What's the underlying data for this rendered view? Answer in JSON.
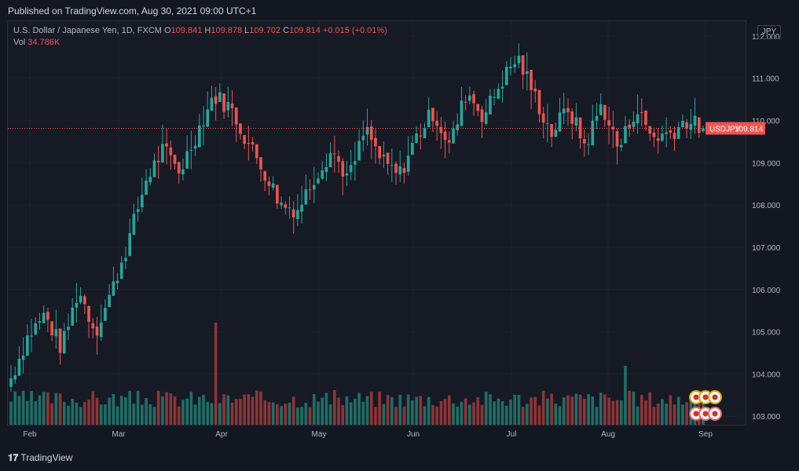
{
  "header": {
    "published": "Published on TradingView.com, Aug 30, 2021 09:00 UTC+1"
  },
  "legend": {
    "symbol_desc": "U.S. Dollar / Japanese Yen, 1D, FXCM",
    "o_label": "O",
    "o_value": "109.841",
    "h_label": "H",
    "h_value": "109.878",
    "l_label": "L",
    "l_value": "109.702",
    "c_label": "C",
    "c_value": "109.814",
    "change": "+0.015 (+0.01%)",
    "vol_label": "Vol",
    "vol_value": "34.786K"
  },
  "currency_button": "JPY",
  "price_tag": {
    "symbol": "USDJPY",
    "value": "109.814",
    "color": "#ef5350"
  },
  "footer": {
    "brand": "TradingView"
  },
  "colors": {
    "up": "#26a69a",
    "down": "#ef5350",
    "vol_up": "#1f6e66",
    "vol_down": "#8f3436"
  },
  "chart_data": {
    "type": "candlestick",
    "symbol": "USDJPY",
    "timeframe": "1D",
    "ylim": [
      102.8,
      112.35
    ],
    "y_ticks": [
      "103.000",
      "104.000",
      "105.000",
      "106.000",
      "107.000",
      "108.000",
      "109.000",
      "110.000",
      "111.000",
      "112.000"
    ],
    "x_ticks": [
      "Feb",
      "Mar",
      "Apr",
      "May",
      "Jun",
      "Jul",
      "Aug",
      "Sep"
    ],
    "last_price": 109.814,
    "points": [
      {
        "anchor": true,
        "month": "Feb",
        "close": 103.9,
        "low": 103.55,
        "high": 104.0
      },
      {
        "anchor": true,
        "month": "Feb",
        "close": 104.9,
        "low": 104.5,
        "high": 105.1
      },
      {
        "anchor": true,
        "month": "Feb",
        "close": 105.4,
        "low": 105.1,
        "high": 105.8
      },
      {
        "anchor": true,
        "month": "Feb",
        "close": 104.6,
        "low": 104.45,
        "high": 105.2
      },
      {
        "anchor": true,
        "month": "Feb",
        "close": 106.0,
        "low": 105.6,
        "high": 106.1
      },
      {
        "anchor": true,
        "month": "Feb",
        "close": 105.0,
        "low": 104.9,
        "high": 105.9
      },
      {
        "anchor": true,
        "month": "Mar",
        "close": 106.0,
        "low": 105.8,
        "high": 106.2
      },
      {
        "anchor": true,
        "month": "Mar",
        "close": 107.2,
        "low": 106.8,
        "high": 107.3
      },
      {
        "anchor": true,
        "month": "Mar",
        "close": 108.6,
        "low": 108.1,
        "high": 108.9
      },
      {
        "anchor": true,
        "month": "Mar",
        "close": 109.3,
        "low": 108.7,
        "high": 109.4
      },
      {
        "anchor": true,
        "month": "Mar",
        "close": 108.8,
        "low": 108.4,
        "high": 109.1
      },
      {
        "anchor": true,
        "month": "Mar",
        "close": 109.7,
        "low": 109.4,
        "high": 109.9
      },
      {
        "anchor": true,
        "month": "Apr",
        "close": 110.6,
        "low": 110.2,
        "high": 110.95
      },
      {
        "anchor": true,
        "month": "Apr",
        "close": 110.3,
        "low": 109.8,
        "high": 110.9
      },
      {
        "anchor": true,
        "month": "Apr",
        "close": 109.5,
        "low": 109.0,
        "high": 109.8
      },
      {
        "anchor": true,
        "month": "Apr",
        "close": 108.8,
        "low": 108.6,
        "high": 109.2
      },
      {
        "anchor": true,
        "month": "Apr",
        "close": 108.0,
        "low": 107.85,
        "high": 108.5
      },
      {
        "anchor": true,
        "month": "Apr",
        "close": 107.9,
        "low": 107.5,
        "high": 108.2
      },
      {
        "anchor": true,
        "month": "Apr",
        "close": 108.7,
        "low": 108.3,
        "high": 108.9
      },
      {
        "anchor": true,
        "month": "May",
        "close": 109.3,
        "low": 109.0,
        "high": 109.6
      },
      {
        "anchor": true,
        "month": "May",
        "close": 108.6,
        "low": 108.4,
        "high": 109.2
      },
      {
        "anchor": true,
        "month": "May",
        "close": 109.8,
        "low": 109.0,
        "high": 109.9
      },
      {
        "anchor": true,
        "month": "May",
        "close": 109.0,
        "low": 108.8,
        "high": 109.5
      },
      {
        "anchor": true,
        "month": "May",
        "close": 108.7,
        "low": 108.5,
        "high": 109.1
      },
      {
        "anchor": true,
        "month": "May",
        "close": 109.6,
        "low": 109.0,
        "high": 109.8
      },
      {
        "anchor": true,
        "month": "Jun",
        "close": 110.2,
        "low": 109.8,
        "high": 110.4
      },
      {
        "anchor": true,
        "month": "Jun",
        "close": 109.4,
        "low": 109.2,
        "high": 110.1
      },
      {
        "anchor": true,
        "month": "Jun",
        "close": 110.7,
        "low": 110.1,
        "high": 110.9
      },
      {
        "anchor": true,
        "month": "Jun",
        "close": 110.1,
        "low": 109.8,
        "high": 110.6
      },
      {
        "anchor": true,
        "month": "Jun",
        "close": 110.9,
        "low": 110.4,
        "high": 111.2
      },
      {
        "anchor": true,
        "month": "Jul",
        "close": 111.5,
        "low": 111.0,
        "high": 111.65
      },
      {
        "anchor": true,
        "month": "Jul",
        "close": 110.6,
        "low": 110.3,
        "high": 111.3
      },
      {
        "anchor": true,
        "month": "Jul",
        "close": 109.7,
        "low": 109.5,
        "high": 110.6
      },
      {
        "anchor": true,
        "month": "Jul",
        "close": 110.3,
        "low": 109.8,
        "high": 110.5
      },
      {
        "anchor": true,
        "month": "Jul",
        "close": 109.4,
        "low": 109.0,
        "high": 110.0
      },
      {
        "anchor": true,
        "month": "Jul",
        "close": 110.4,
        "low": 109.8,
        "high": 110.6
      },
      {
        "anchor": true,
        "month": "Aug",
        "close": 109.3,
        "low": 108.8,
        "high": 109.7
      },
      {
        "anchor": true,
        "month": "Aug",
        "close": 110.3,
        "low": 109.9,
        "high": 110.8
      },
      {
        "anchor": true,
        "month": "Aug",
        "close": 109.6,
        "low": 109.1,
        "high": 110.2
      },
      {
        "anchor": true,
        "month": "Aug",
        "close": 109.7,
        "low": 109.4,
        "high": 110.1
      },
      {
        "anchor": true,
        "month": "Aug",
        "close": 110.0,
        "low": 109.6,
        "high": 110.3
      },
      {
        "anchor": true,
        "month": "Sep",
        "close": 109.81,
        "low": 109.7,
        "high": 109.88
      }
    ],
    "volume_range": [
      0,
      60000
    ]
  }
}
